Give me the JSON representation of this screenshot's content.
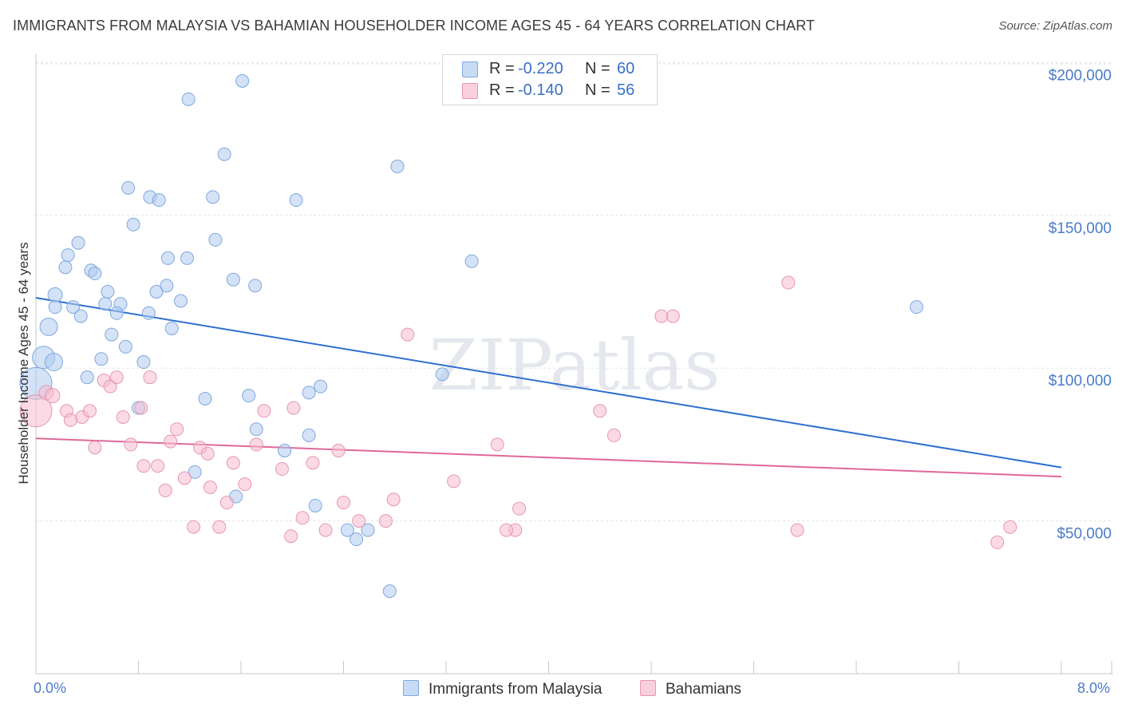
{
  "title": "IMMIGRANTS FROM MALAYSIA VS BAHAMIAN HOUSEHOLDER INCOME AGES 45 - 64 YEARS CORRELATION CHART",
  "source": "Source: ZipAtlas.com",
  "watermark": "ZIPatlas",
  "legend": {
    "rows": [
      {
        "r_label": "R =",
        "r_value": "-0.220",
        "n_label": "N =",
        "n_value": "60",
        "color": "#aecbf0"
      },
      {
        "r_label": "R =",
        "r_value": "-0.140",
        "n_label": "N =",
        "n_value": "56",
        "color": "#f7bcd0"
      }
    ]
  },
  "bottom_legend": {
    "series1": "Immigrants from Malaysia",
    "series2": "Bahamians"
  },
  "chart_data": {
    "type": "scatter",
    "title": "IMMIGRANTS FROM MALAYSIA VS BAHAMIAN HOUSEHOLDER INCOME AGES 45 - 64 YEARS CORRELATION CHART",
    "xlabel": "",
    "ylabel": "Householder Income Ages 45 - 64 years",
    "xlim": [
      0,
      8
    ],
    "ylim": [
      0,
      205000
    ],
    "x_tick_labels": [
      "0.0%",
      "8.0%"
    ],
    "y_ticks": [
      50000,
      100000,
      150000,
      200000
    ],
    "y_tick_labels": [
      "$50,000",
      "$100,000",
      "$150,000",
      "$200,000"
    ],
    "grid": true,
    "legend_position": "top-center",
    "series": [
      {
        "name": "Immigrants from Malaysia",
        "color": "#aecbf0",
        "stroke": "#7ea8de",
        "trend": {
          "x": [
            0,
            8
          ],
          "y": [
            123000,
            67500
          ],
          "color": "#2f6fce"
        },
        "points": [
          [
            1.61,
            194000,
            8
          ],
          [
            1.19,
            188000,
            8
          ],
          [
            1.47,
            170000,
            8
          ],
          [
            2.82,
            166000,
            8
          ],
          [
            0.72,
            159000,
            8
          ],
          [
            0.89,
            156000,
            8
          ],
          [
            0.96,
            155000,
            8
          ],
          [
            1.38,
            156000,
            8
          ],
          [
            2.03,
            155000,
            8
          ],
          [
            0.76,
            147000,
            8
          ],
          [
            0.33,
            141000,
            8
          ],
          [
            1.4,
            142000,
            8
          ],
          [
            0.25,
            137000,
            8
          ],
          [
            1.03,
            136000,
            8
          ],
          [
            1.18,
            136000,
            8
          ],
          [
            0.23,
            133000,
            8
          ],
          [
            0.43,
            132000,
            8
          ],
          [
            0.46,
            131000,
            8
          ],
          [
            3.4,
            135000,
            8
          ],
          [
            1.54,
            129000,
            8
          ],
          [
            1.02,
            127000,
            8
          ],
          [
            1.71,
            127000,
            8
          ],
          [
            0.56,
            125000,
            8
          ],
          [
            0.94,
            125000,
            8
          ],
          [
            0.15,
            124000,
            9
          ],
          [
            0.15,
            120000,
            8
          ],
          [
            0.29,
            120000,
            8
          ],
          [
            0.54,
            121000,
            8
          ],
          [
            0.66,
            121000,
            8
          ],
          [
            1.13,
            122000,
            8
          ],
          [
            6.87,
            120000,
            8
          ],
          [
            0.35,
            117000,
            8
          ],
          [
            0.63,
            118000,
            8
          ],
          [
            0.88,
            118000,
            8
          ],
          [
            0.1,
            113500,
            11
          ],
          [
            1.06,
            113000,
            8
          ],
          [
            0.59,
            111000,
            8
          ],
          [
            0.7,
            107000,
            8
          ],
          [
            0.51,
            103000,
            8
          ],
          [
            0.84,
            102000,
            8
          ],
          [
            0.06,
            103500,
            14
          ],
          [
            0.14,
            102000,
            11
          ],
          [
            0.4,
            97000,
            8
          ],
          [
            3.17,
            98000,
            8
          ],
          [
            0.0,
            95000,
            20
          ],
          [
            2.22,
            94000,
            8
          ],
          [
            2.13,
            92000,
            8
          ],
          [
            1.66,
            91000,
            8
          ],
          [
            1.32,
            90000,
            8
          ],
          [
            0.8,
            87000,
            8
          ],
          [
            1.72,
            80000,
            8
          ],
          [
            2.13,
            78000,
            8
          ],
          [
            1.94,
            73000,
            8
          ],
          [
            1.24,
            66000,
            8
          ],
          [
            1.56,
            58000,
            8
          ],
          [
            2.18,
            55000,
            8
          ],
          [
            2.43,
            47000,
            8
          ],
          [
            2.59,
            47000,
            8
          ],
          [
            2.5,
            44000,
            8
          ],
          [
            2.76,
            27000,
            8
          ]
        ]
      },
      {
        "name": "Bahamians",
        "color": "#f7bcd0",
        "stroke": "#e596b2",
        "trend": {
          "x": [
            0,
            8
          ],
          "y": [
            77000,
            64500
          ],
          "color": "#e0689a"
        },
        "points": [
          [
            0.0,
            86000,
            20
          ],
          [
            0.08,
            92000,
            9
          ],
          [
            0.13,
            91000,
            9
          ],
          [
            0.24,
            86000,
            8
          ],
          [
            0.36,
            84000,
            8
          ],
          [
            0.27,
            83000,
            8
          ],
          [
            0.42,
            86000,
            8
          ],
          [
            0.53,
            96000,
            8
          ],
          [
            0.58,
            94000,
            8
          ],
          [
            0.63,
            97000,
            8
          ],
          [
            0.68,
            84000,
            8
          ],
          [
            0.89,
            97000,
            8
          ],
          [
            0.82,
            87000,
            8
          ],
          [
            1.1,
            80000,
            8
          ],
          [
            1.05,
            76000,
            8
          ],
          [
            0.46,
            74000,
            8
          ],
          [
            0.74,
            75000,
            8
          ],
          [
            1.28,
            74000,
            8
          ],
          [
            1.34,
            72000,
            8
          ],
          [
            1.72,
            75000,
            8
          ],
          [
            2.01,
            87000,
            8
          ],
          [
            1.78,
            86000,
            8
          ],
          [
            2.36,
            73000,
            8
          ],
          [
            0.84,
            68000,
            8
          ],
          [
            0.95,
            68000,
            8
          ],
          [
            1.54,
            69000,
            8
          ],
          [
            1.92,
            67000,
            8
          ],
          [
            2.16,
            69000,
            8
          ],
          [
            1.16,
            64000,
            8
          ],
          [
            1.36,
            61000,
            8
          ],
          [
            1.63,
            62000,
            8
          ],
          [
            1.01,
            60000,
            8
          ],
          [
            1.49,
            56000,
            8
          ],
          [
            2.4,
            56000,
            8
          ],
          [
            2.79,
            57000,
            8
          ],
          [
            3.26,
            63000,
            8
          ],
          [
            3.6,
            75000,
            8
          ],
          [
            3.77,
            54000,
            8
          ],
          [
            2.08,
            51000,
            8
          ],
          [
            2.52,
            50000,
            8
          ],
          [
            2.73,
            50000,
            8
          ],
          [
            1.23,
            48000,
            8
          ],
          [
            1.43,
            48000,
            8
          ],
          [
            2.26,
            47000,
            8
          ],
          [
            1.99,
            45000,
            8
          ],
          [
            3.74,
            47000,
            8
          ],
          [
            4.4,
            86000,
            8
          ],
          [
            4.51,
            78000,
            8
          ],
          [
            4.88,
            117000,
            8
          ],
          [
            4.97,
            117000,
            8
          ],
          [
            2.9,
            111000,
            8
          ],
          [
            5.87,
            128000,
            8
          ],
          [
            5.94,
            47000,
            8
          ],
          [
            7.6,
            48000,
            8
          ],
          [
            7.5,
            43000,
            8
          ],
          [
            3.67,
            47000,
            8
          ]
        ]
      }
    ]
  }
}
